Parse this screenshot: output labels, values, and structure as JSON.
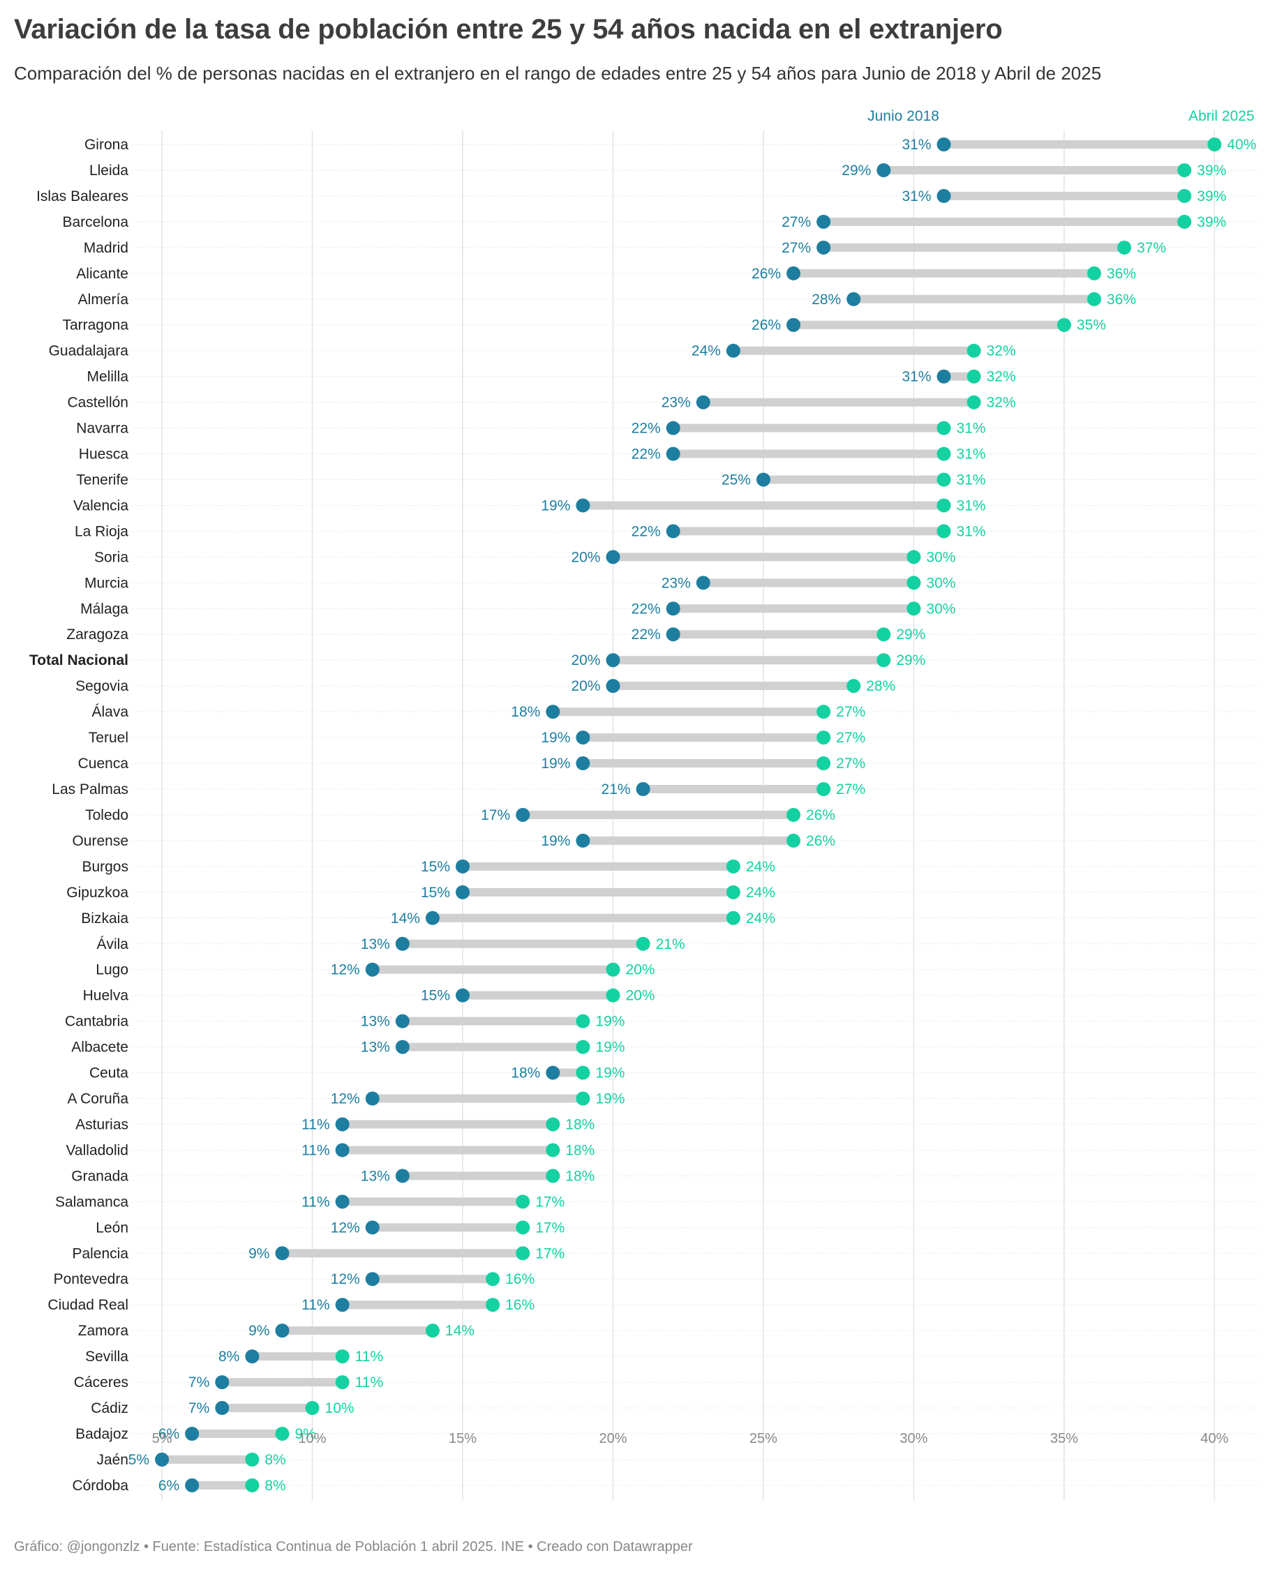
{
  "title": "Variación de la tasa de población entre 25 y 54 años nacida en el extranjero",
  "subtitle": "Comparación del % de personas nacidas en el extranjero en el rango de edades entre 25 y 54 años para Junio de 2018 y Abril de 2025",
  "footer": "Gráfico: @jongonzlz • Fuente: Estadística Continua de Población 1 abril 2025. INE • Creado con Datawrapper",
  "colors": {
    "junio_2018": "#1d7ea0",
    "abril_2025": "#13d1a1",
    "bar": "#d0d0d0",
    "grid": "#e3e3e3",
    "text": "#333333"
  },
  "chart_data": {
    "type": "dumbbell",
    "value_format": "percent",
    "xlim": [
      4,
      41.5
    ],
    "x_ticks": [
      5,
      10,
      15,
      20,
      25,
      30,
      35,
      40
    ],
    "x_tick_labels": [
      "5%",
      "10%",
      "15%",
      "20%",
      "25%",
      "30%",
      "35%",
      "40%"
    ],
    "grid": true,
    "series": [
      {
        "name": "Junio 2018",
        "color": "#1d7ea0"
      },
      {
        "name": "Abril 2025",
        "color": "#13d1a1"
      }
    ],
    "rows": [
      {
        "label": "Girona",
        "junio_2018": 31,
        "abril_2025": 40
      },
      {
        "label": "Lleida",
        "junio_2018": 29,
        "abril_2025": 39
      },
      {
        "label": "Islas Baleares",
        "junio_2018": 31,
        "abril_2025": 39
      },
      {
        "label": "Barcelona",
        "junio_2018": 27,
        "abril_2025": 39
      },
      {
        "label": "Madrid",
        "junio_2018": 27,
        "abril_2025": 37
      },
      {
        "label": "Alicante",
        "junio_2018": 26,
        "abril_2025": 36
      },
      {
        "label": "Almería",
        "junio_2018": 28,
        "abril_2025": 36
      },
      {
        "label": "Tarragona",
        "junio_2018": 26,
        "abril_2025": 35
      },
      {
        "label": "Guadalajara",
        "junio_2018": 24,
        "abril_2025": 32
      },
      {
        "label": "Melilla",
        "junio_2018": 31,
        "abril_2025": 32
      },
      {
        "label": "Castellón",
        "junio_2018": 23,
        "abril_2025": 32
      },
      {
        "label": "Navarra",
        "junio_2018": 22,
        "abril_2025": 31
      },
      {
        "label": "Huesca",
        "junio_2018": 22,
        "abril_2025": 31
      },
      {
        "label": "Tenerife",
        "junio_2018": 25,
        "abril_2025": 31
      },
      {
        "label": "Valencia",
        "junio_2018": 19,
        "abril_2025": 31
      },
      {
        "label": "La Rioja",
        "junio_2018": 22,
        "abril_2025": 31
      },
      {
        "label": "Soria",
        "junio_2018": 20,
        "abril_2025": 30
      },
      {
        "label": "Murcia",
        "junio_2018": 23,
        "abril_2025": 30
      },
      {
        "label": "Málaga",
        "junio_2018": 22,
        "abril_2025": 30
      },
      {
        "label": "Zaragoza",
        "junio_2018": 22,
        "abril_2025": 29
      },
      {
        "label": "Total Nacional",
        "junio_2018": 20,
        "abril_2025": 29,
        "bold": true
      },
      {
        "label": "Segovia",
        "junio_2018": 20,
        "abril_2025": 28
      },
      {
        "label": "Álava",
        "junio_2018": 18,
        "abril_2025": 27
      },
      {
        "label": "Teruel",
        "junio_2018": 19,
        "abril_2025": 27
      },
      {
        "label": "Cuenca",
        "junio_2018": 19,
        "abril_2025": 27
      },
      {
        "label": "Las Palmas",
        "junio_2018": 21,
        "abril_2025": 27
      },
      {
        "label": "Toledo",
        "junio_2018": 17,
        "abril_2025": 26
      },
      {
        "label": "Ourense",
        "junio_2018": 19,
        "abril_2025": 26
      },
      {
        "label": "Burgos",
        "junio_2018": 15,
        "abril_2025": 24
      },
      {
        "label": "Gipuzkoa",
        "junio_2018": 15,
        "abril_2025": 24
      },
      {
        "label": "Bizkaia",
        "junio_2018": 14,
        "abril_2025": 24
      },
      {
        "label": "Ávila",
        "junio_2018": 13,
        "abril_2025": 21
      },
      {
        "label": "Lugo",
        "junio_2018": 12,
        "abril_2025": 20
      },
      {
        "label": "Huelva",
        "junio_2018": 15,
        "abril_2025": 20
      },
      {
        "label": "Cantabria",
        "junio_2018": 13,
        "abril_2025": 19
      },
      {
        "label": "Albacete",
        "junio_2018": 13,
        "abril_2025": 19
      },
      {
        "label": "Ceuta",
        "junio_2018": 18,
        "abril_2025": 19
      },
      {
        "label": "A Coruña",
        "junio_2018": 12,
        "abril_2025": 19
      },
      {
        "label": "Asturias",
        "junio_2018": 11,
        "abril_2025": 18
      },
      {
        "label": "Valladolid",
        "junio_2018": 11,
        "abril_2025": 18
      },
      {
        "label": "Granada",
        "junio_2018": 13,
        "abril_2025": 18
      },
      {
        "label": "Salamanca",
        "junio_2018": 11,
        "abril_2025": 17
      },
      {
        "label": "León",
        "junio_2018": 12,
        "abril_2025": 17
      },
      {
        "label": "Palencia",
        "junio_2018": 9,
        "abril_2025": 17
      },
      {
        "label": "Pontevedra",
        "junio_2018": 12,
        "abril_2025": 16
      },
      {
        "label": "Ciudad Real",
        "junio_2018": 11,
        "abril_2025": 16
      },
      {
        "label": "Zamora",
        "junio_2018": 9,
        "abril_2025": 14
      },
      {
        "label": "Sevilla",
        "junio_2018": 8,
        "abril_2025": 11
      },
      {
        "label": "Cáceres",
        "junio_2018": 7,
        "abril_2025": 11
      },
      {
        "label": "Cádiz",
        "junio_2018": 7,
        "abril_2025": 10
      },
      {
        "label": "Badajoz",
        "junio_2018": 6,
        "abril_2025": 9
      },
      {
        "label": "Jaén",
        "junio_2018": 5,
        "abril_2025": 8
      },
      {
        "label": "Córdoba",
        "junio_2018": 6,
        "abril_2025": 8
      }
    ]
  }
}
